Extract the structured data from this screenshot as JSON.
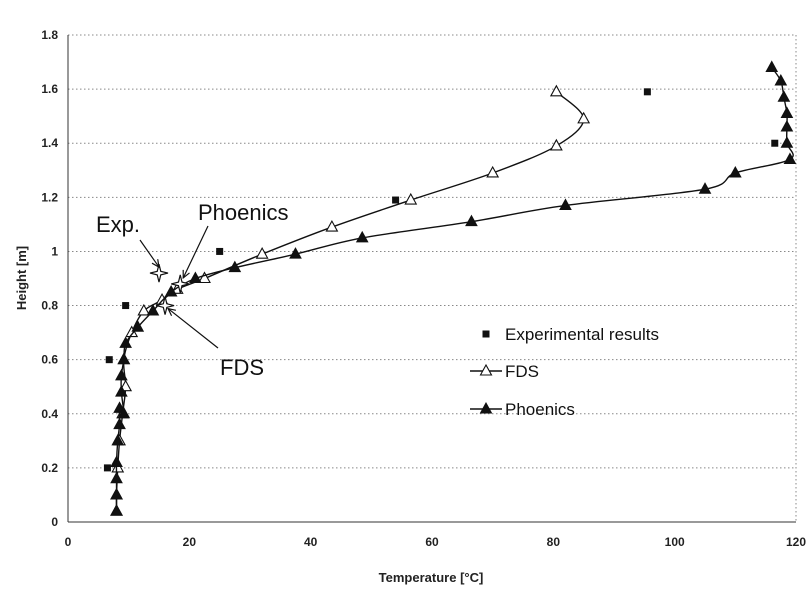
{
  "chart_data": {
    "type": "line",
    "xlabel": "Temperature [°C]",
    "ylabel": "Height [m]",
    "xlim": [
      0,
      120
    ],
    "ylim": [
      0,
      1.8
    ],
    "x_ticks": [
      "0",
      "20",
      "40",
      "60",
      "80",
      "100",
      "120"
    ],
    "y_ticks": [
      "0",
      "0.2",
      "0.4",
      "0.6",
      "0.8",
      "1",
      "1.2",
      "1.4",
      "1.6",
      "1.8"
    ],
    "grid": "horizontal dotted",
    "legend_position": "center-right",
    "series": [
      {
        "name": "Experimental results",
        "marker": "filled-square",
        "line": false,
        "color": "#111111",
        "points": [
          [
            6.5,
            0.2
          ],
          [
            6.8,
            0.6
          ],
          [
            9.5,
            0.8
          ],
          [
            25,
            1.0
          ],
          [
            54,
            1.19
          ],
          [
            95.5,
            1.59
          ],
          [
            116.5,
            1.4
          ]
        ]
      },
      {
        "name": "FDS",
        "marker": "open-triangle",
        "line": true,
        "color": "#111111",
        "points": [
          [
            8,
            0.04
          ],
          [
            8,
            0.1
          ],
          [
            8.2,
            0.2
          ],
          [
            8.5,
            0.3
          ],
          [
            9,
            0.4
          ],
          [
            9.5,
            0.5
          ],
          [
            9.2,
            0.6
          ],
          [
            10.5,
            0.7
          ],
          [
            12.5,
            0.78
          ],
          [
            15.5,
            0.82
          ],
          [
            18,
            0.86
          ],
          [
            22.5,
            0.9
          ],
          [
            32,
            0.99
          ],
          [
            43.5,
            1.09
          ],
          [
            56.5,
            1.19
          ],
          [
            70,
            1.29
          ],
          [
            80.5,
            1.39
          ],
          [
            85,
            1.49
          ],
          [
            80.5,
            1.59
          ]
        ]
      },
      {
        "name": "Phoenics",
        "marker": "filled-triangle",
        "line": true,
        "color": "#111111",
        "points": [
          [
            8,
            0.04
          ],
          [
            8,
            0.1
          ],
          [
            8,
            0.16
          ],
          [
            8,
            0.22
          ],
          [
            8.2,
            0.3
          ],
          [
            8.5,
            0.36
          ],
          [
            8.5,
            0.42
          ],
          [
            9.2,
            0.4
          ],
          [
            8.8,
            0.48
          ],
          [
            8.8,
            0.54
          ],
          [
            9.2,
            0.6
          ],
          [
            9.5,
            0.66
          ],
          [
            11.5,
            0.72
          ],
          [
            14,
            0.78
          ],
          [
            17,
            0.85
          ],
          [
            21,
            0.9
          ],
          [
            27.5,
            0.94
          ],
          [
            37.5,
            0.99
          ],
          [
            48.5,
            1.05
          ],
          [
            66.5,
            1.11
          ],
          [
            82,
            1.17
          ],
          [
            105,
            1.23
          ],
          [
            110,
            1.29
          ],
          [
            119,
            1.34
          ],
          [
            118.5,
            1.4
          ],
          [
            118.5,
            1.46
          ],
          [
            118.5,
            1.51
          ],
          [
            118,
            1.57
          ],
          [
            117.5,
            1.63
          ],
          [
            116,
            1.68
          ]
        ]
      }
    ],
    "annotations": [
      {
        "label": "Exp.",
        "x": 15,
        "y": 0.92
      },
      {
        "label": "Phoenics",
        "x": 18.5,
        "y": 0.88
      },
      {
        "label": "FDS",
        "x": 16,
        "y": 0.8
      }
    ]
  }
}
